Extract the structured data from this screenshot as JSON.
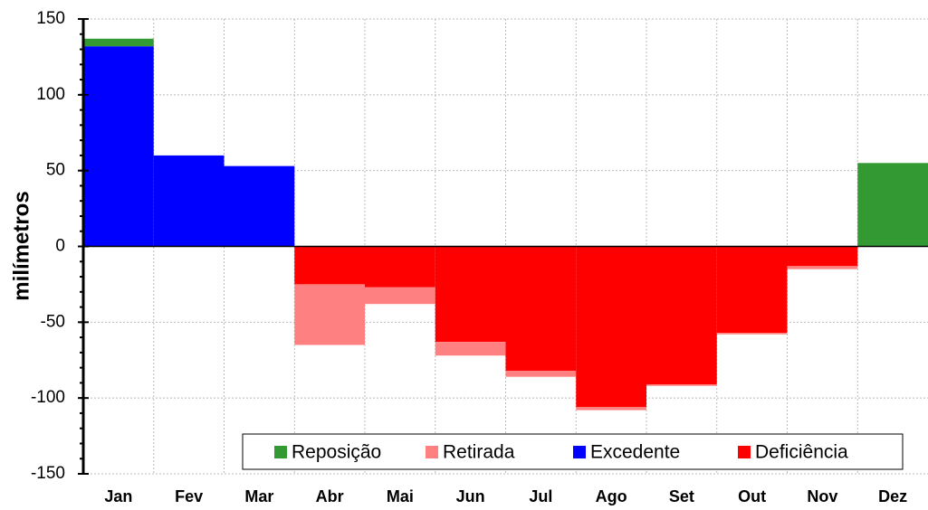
{
  "chart_data": {
    "type": "bar",
    "stacked": true,
    "ylabel": "milímetros",
    "categories": [
      "Jan",
      "Fev",
      "Mar",
      "Abr",
      "Mai",
      "Jun",
      "Jul",
      "Ago",
      "Set",
      "Out",
      "Nov",
      "Dez"
    ],
    "series": [
      {
        "name": "Reposição",
        "color": "#339933",
        "values": [
          5,
          0,
          0,
          0,
          0,
          0,
          0,
          0,
          0,
          0,
          0,
          55
        ]
      },
      {
        "name": "Retirada",
        "color": "#ff8080",
        "values": [
          0,
          0,
          0,
          -40,
          -11,
          -9,
          -4,
          -2,
          -1,
          -1,
          -2,
          0
        ]
      },
      {
        "name": "Excedente",
        "color": "#0000ff",
        "values": [
          132,
          60,
          53,
          0,
          0,
          0,
          0,
          0,
          0,
          0,
          0,
          0
        ]
      },
      {
        "name": "Deficiência",
        "color": "#ff0000",
        "values": [
          0,
          0,
          0,
          -25,
          -27,
          -63,
          -82,
          -106,
          -91,
          -57,
          -13,
          0
        ]
      }
    ],
    "ylim": [
      -150,
      150
    ],
    "yticks": [
      -150,
      -100,
      -50,
      0,
      50,
      100,
      150
    ],
    "grid": true,
    "legend": "lower right"
  }
}
